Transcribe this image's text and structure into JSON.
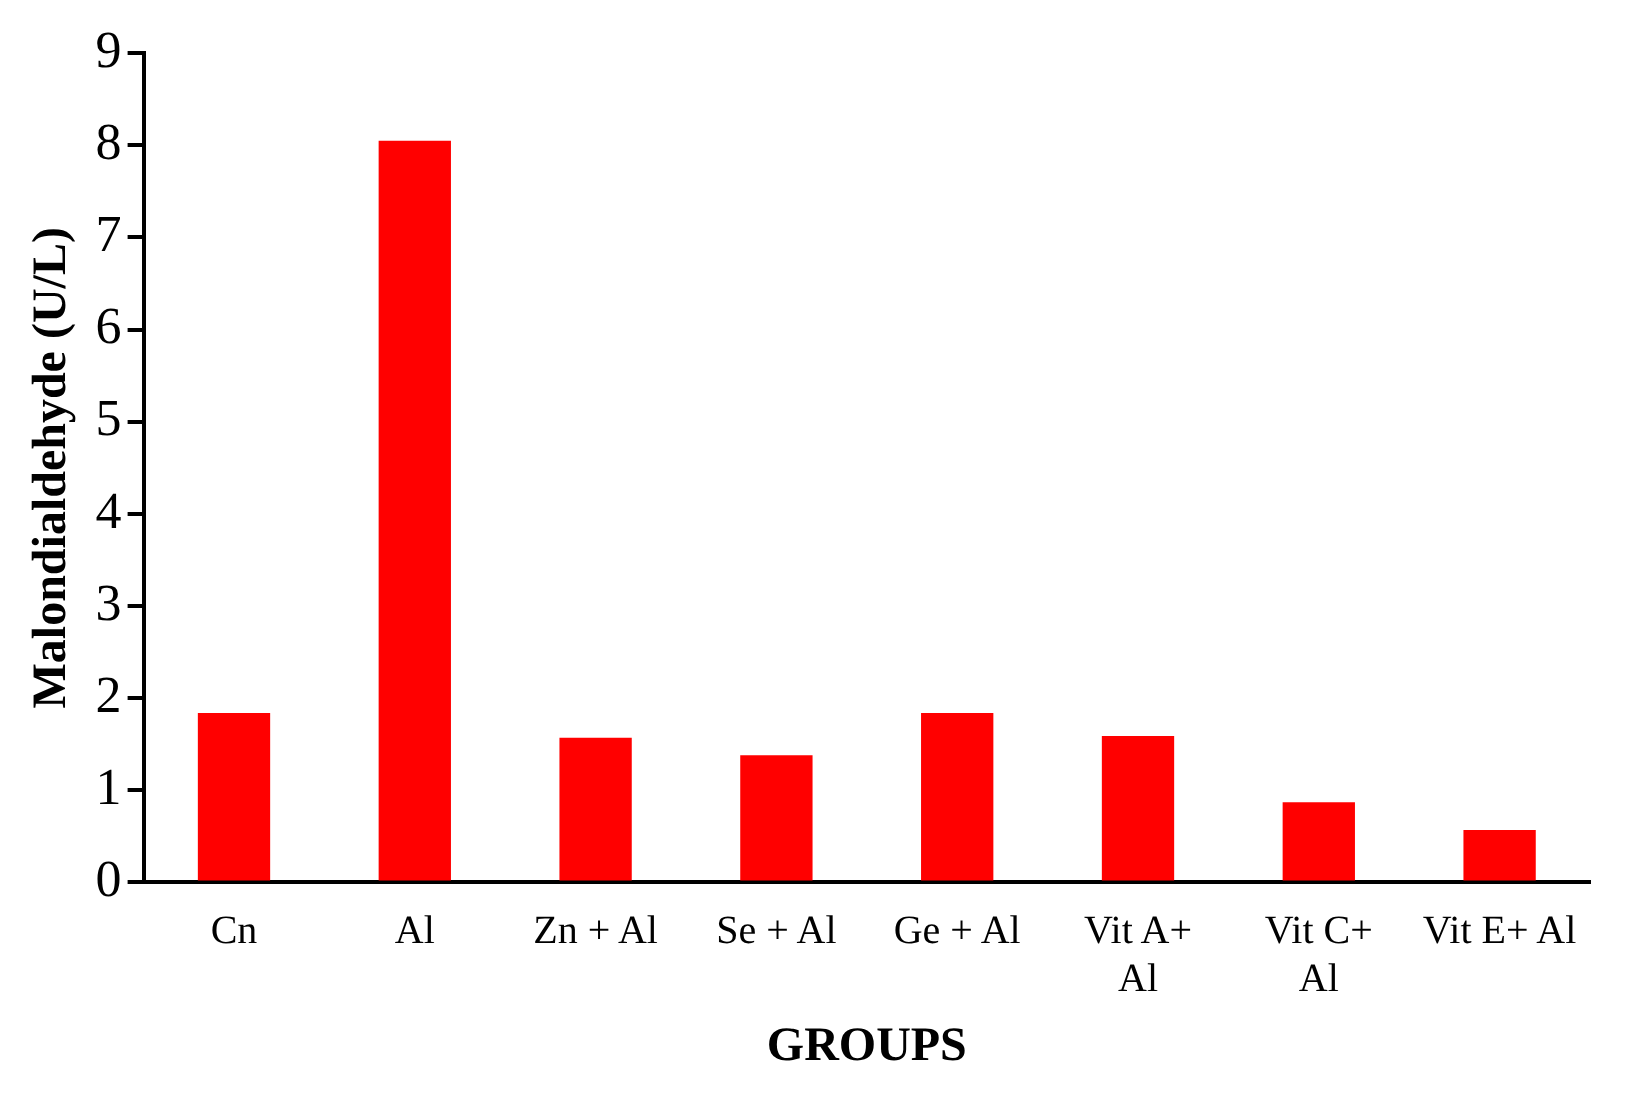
{
  "chart_data": {
    "type": "bar",
    "xlabel": "GROUPS",
    "ylabel": "Malondialdehyde (U/L)",
    "categories": [
      "Cn",
      "Al",
      "Zn + Al",
      "Se + Al",
      "Ge + Al",
      "Vit A+ Al",
      "Vit C+ Al",
      "Vit E+ Al"
    ],
    "values": [
      1.84,
      8.05,
      1.57,
      1.38,
      1.84,
      1.59,
      0.87,
      0.57
    ],
    "color": "#ff0000",
    "ylim": [
      0,
      9
    ],
    "yticks": [
      0,
      1,
      2,
      3,
      4,
      5,
      6,
      7,
      8,
      9
    ],
    "grid": false,
    "legend": false
  }
}
